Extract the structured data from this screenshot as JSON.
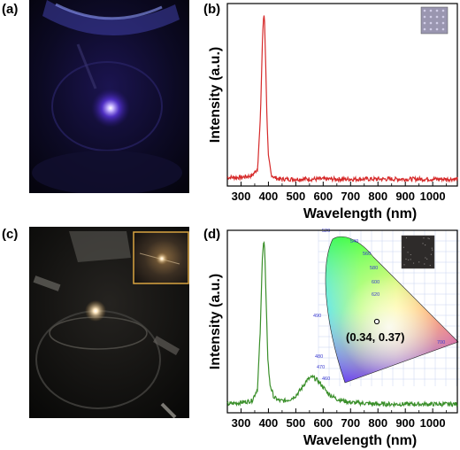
{
  "panels": {
    "a": {
      "label": "(a)"
    },
    "b": {
      "label": "(b)"
    },
    "c": {
      "label": "(c)"
    },
    "d": {
      "label": "(d)"
    }
  },
  "colors": {
    "b_line": "#d62a2a",
    "d_line": "#3a8f2a"
  },
  "cie_annotation": "(0.34, 0.37)",
  "cie_wavelength_ticks": [
    "520",
    "540",
    "560",
    "580",
    "600",
    "620",
    "700",
    "490",
    "480",
    "470",
    "460"
  ],
  "chart_data": [
    {
      "type": "line",
      "panel": "b",
      "xlabel": "Wavelength (nm)",
      "ylabel": "Intensity (a.u.)",
      "xlim": [
        250,
        1090
      ],
      "x_ticks": [
        300,
        400,
        500,
        600,
        700,
        800,
        900,
        1000
      ],
      "y_ticks": [],
      "grid": false,
      "series": [
        {
          "x": [
            250,
            300,
            340,
            360,
            370,
            378,
            383,
            386,
            390,
            395,
            400,
            410,
            420,
            440,
            500,
            600,
            700,
            800,
            900,
            1000,
            1090
          ],
          "y": [
            0.03,
            0.03,
            0.04,
            0.08,
            0.35,
            0.82,
            1.0,
            0.95,
            0.7,
            0.35,
            0.15,
            0.05,
            0.03,
            0.02,
            0.02,
            0.02,
            0.02,
            0.02,
            0.02,
            0.02,
            0.02
          ]
        }
      ]
    },
    {
      "type": "line",
      "panel": "d",
      "xlabel": "Wavelength (nm)",
      "ylabel": "Intensity (a.u.)",
      "xlim": [
        250,
        1090
      ],
      "x_ticks": [
        300,
        400,
        500,
        600,
        700,
        800,
        900,
        1000
      ],
      "y_ticks": [],
      "grid": false,
      "series": [
        {
          "x": [
            250,
            300,
            340,
            360,
            370,
            378,
            383,
            387,
            392,
            398,
            405,
            420,
            440,
            460,
            480,
            500,
            520,
            540,
            560,
            580,
            600,
            620,
            650,
            700,
            800,
            900,
            1000,
            1090
          ],
          "y": [
            0.03,
            0.04,
            0.05,
            0.12,
            0.45,
            0.9,
            1.0,
            0.92,
            0.6,
            0.3,
            0.15,
            0.07,
            0.05,
            0.05,
            0.06,
            0.08,
            0.12,
            0.17,
            0.19,
            0.17,
            0.13,
            0.09,
            0.06,
            0.04,
            0.03,
            0.03,
            0.03,
            0.03
          ]
        }
      ]
    }
  ]
}
